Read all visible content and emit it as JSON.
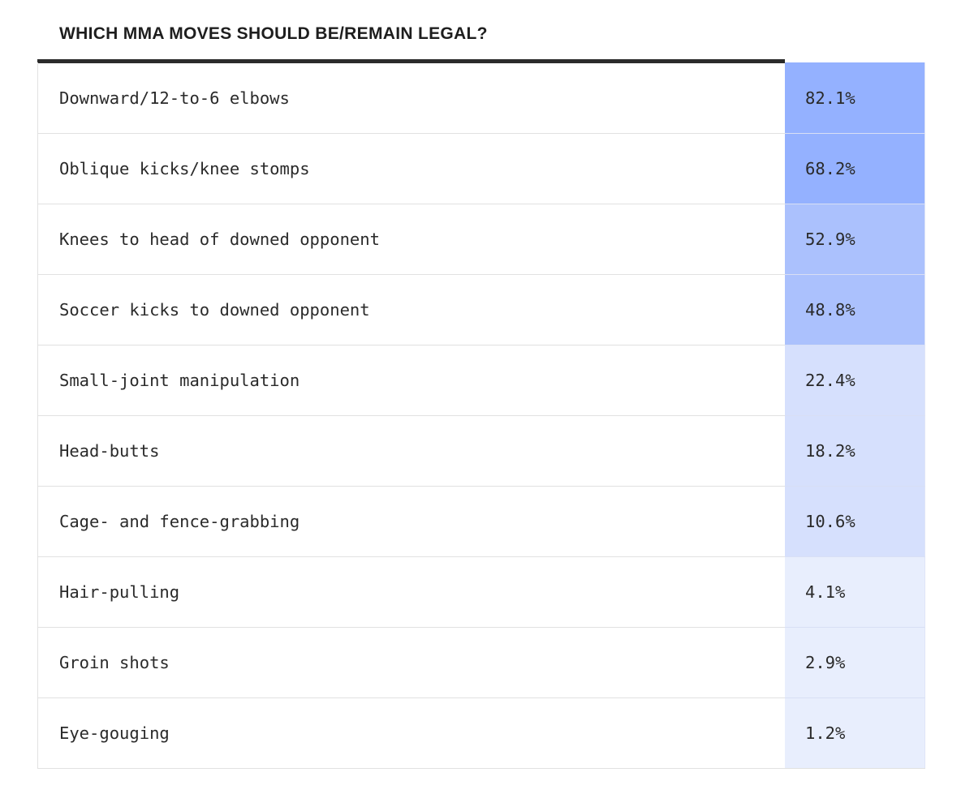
{
  "chart_data": {
    "type": "table",
    "title": "WHICH MMA MOVES SHOULD BE/REMAIN LEGAL?",
    "rows": [
      {
        "label": "Downward/12-to-6 elbows",
        "value": 82.1,
        "display": "82.1%"
      },
      {
        "label": "Oblique kicks/knee stomps",
        "value": 68.2,
        "display": "68.2%"
      },
      {
        "label": "Knees to head of downed opponent",
        "value": 52.9,
        "display": "52.9%"
      },
      {
        "label": "Soccer kicks to downed opponent",
        "value": 48.8,
        "display": "48.8%"
      },
      {
        "label": "Small-joint manipulation",
        "value": 22.4,
        "display": "22.4%"
      },
      {
        "label": "Head-butts",
        "value": 18.2,
        "display": "18.2%"
      },
      {
        "label": "Cage- and fence-grabbing",
        "value": 10.6,
        "display": "10.6%"
      },
      {
        "label": "Hair-pulling",
        "value": 4.1,
        "display": "4.1%"
      },
      {
        "label": "Groin shots",
        "value": 2.9,
        "display": "2.9%"
      },
      {
        "label": "Eye-gouging",
        "value": 1.2,
        "display": "1.2%"
      }
    ],
    "color_scale": [
      {
        "min": 60,
        "color": "#94b1ff"
      },
      {
        "min": 40,
        "color": "#abc1fd"
      },
      {
        "min": 10,
        "color": "#d6e0fd"
      },
      {
        "min": 0,
        "color": "#e8eefd"
      }
    ]
  }
}
